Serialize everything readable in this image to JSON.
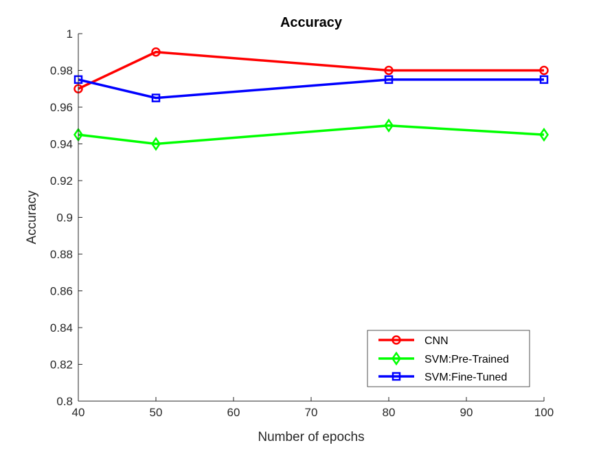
{
  "chart_data": {
    "type": "line",
    "title": "Accuracy",
    "xlabel": "Number of epochs",
    "ylabel": "Accuracy",
    "xlim": [
      40,
      100
    ],
    "ylim": [
      0.8,
      1
    ],
    "xticks": [
      40,
      50,
      60,
      70,
      80,
      90,
      100
    ],
    "xtick_labels": [
      "40",
      "50",
      "60",
      "70",
      "80",
      "90",
      "100"
    ],
    "yticks": [
      0.8,
      0.82,
      0.84,
      0.86,
      0.88,
      0.9,
      0.92,
      0.94,
      0.96,
      0.98,
      1
    ],
    "ytick_labels": [
      "0.8",
      "0.82",
      "0.84",
      "0.86",
      "0.88",
      "0.9",
      "0.92",
      "0.94",
      "0.96",
      "0.98",
      "1"
    ],
    "grid": false,
    "legend_position": "bottom-right",
    "x": [
      40,
      50,
      80,
      100
    ],
    "series": [
      {
        "name": "CNN",
        "values": [
          0.97,
          0.99,
          0.98,
          0.98
        ],
        "color": "#ff0000",
        "marker": "circle"
      },
      {
        "name": "SVM:Pre-Trained",
        "values": [
          0.945,
          0.94,
          0.95,
          0.945
        ],
        "color": "#00ff00",
        "marker": "diamond"
      },
      {
        "name": "SVM:Fine-Tuned",
        "values": [
          0.975,
          0.965,
          0.975,
          0.975
        ],
        "color": "#0000ff",
        "marker": "square"
      }
    ]
  }
}
